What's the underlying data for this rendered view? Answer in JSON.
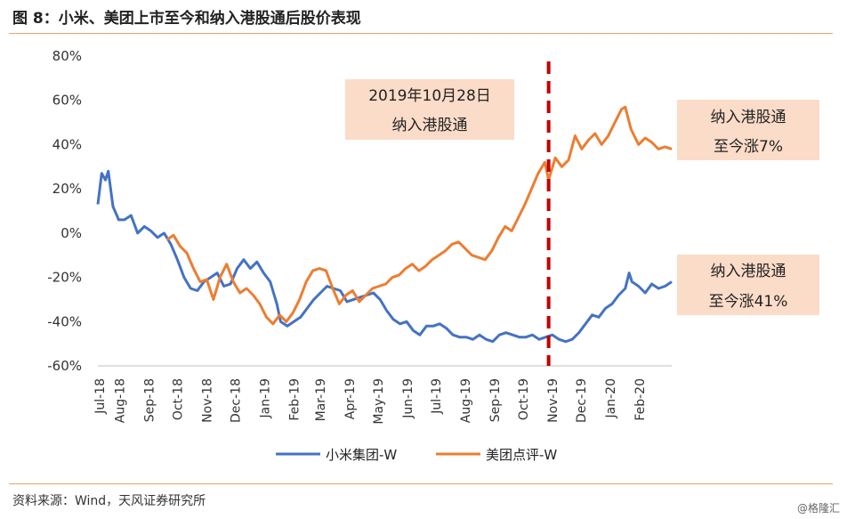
{
  "header": {
    "title": "图 8：小米、美团上市至今和纳入港股通后股价表现"
  },
  "footer": {
    "source": "资料来源：Wind，天风证券研究所",
    "watermark": "@格隆汇"
  },
  "annotations": {
    "inclusion_date": {
      "line1": "2019年10月28日",
      "line2": "纳入港股通"
    },
    "meituan_note": {
      "line1": "纳入港股通",
      "line2": "至今涨7%"
    },
    "xiaomi_note": {
      "line1": "纳入港股通",
      "line2": "至今涨41%"
    }
  },
  "colors": {
    "xiaomi": "#4472c4",
    "meituan": "#ed7d31",
    "marker": "#c00000",
    "note_fill": "#fbdcc8"
  },
  "chart_data": {
    "type": "line",
    "title": "",
    "xlabel": "",
    "ylabel": "",
    "ylim": [
      -60,
      80
    ],
    "y_ticks": [
      "80%",
      "60%",
      "40%",
      "20%",
      "0%",
      "-20%",
      "-40%",
      "-60%"
    ],
    "x_ticks": [
      "Jul-18",
      "Aug-18",
      "Sep-18",
      "Oct-18",
      "Nov-18",
      "Dec-18",
      "Jan-19",
      "Feb-19",
      "Mar-19",
      "Apr-19",
      "May-19",
      "Jun-19",
      "Jul-19",
      "Aug-19",
      "Sep-19",
      "Oct-19",
      "Nov-19",
      "Dec-19",
      "Jan-20",
      "Feb-20"
    ],
    "x_range": [
      "2018-07-09",
      "2020-03-06"
    ],
    "event_date": "2019-10-28",
    "legend": "bottom",
    "grid": false,
    "series": [
      {
        "name": "小米集团-W",
        "color": "#4472c4",
        "points": [
          [
            "2018-07-09",
            13
          ],
          [
            "2018-07-13",
            27
          ],
          [
            "2018-07-17",
            24
          ],
          [
            "2018-07-20",
            28
          ],
          [
            "2018-07-25",
            12
          ],
          [
            "2018-07-31",
            6
          ],
          [
            "2018-08-06",
            6
          ],
          [
            "2018-08-13",
            8
          ],
          [
            "2018-08-20",
            0
          ],
          [
            "2018-08-27",
            3
          ],
          [
            "2018-09-03",
            1
          ],
          [
            "2018-09-10",
            -2
          ],
          [
            "2018-09-17",
            0
          ],
          [
            "2018-09-24",
            -5
          ],
          [
            "2018-10-01",
            -12
          ],
          [
            "2018-10-08",
            -20
          ],
          [
            "2018-10-15",
            -25
          ],
          [
            "2018-10-22",
            -26
          ],
          [
            "2018-10-29",
            -22
          ],
          [
            "2018-11-05",
            -20
          ],
          [
            "2018-11-12",
            -18
          ],
          [
            "2018-11-19",
            -24
          ],
          [
            "2018-11-26",
            -23
          ],
          [
            "2018-12-03",
            -16
          ],
          [
            "2018-12-10",
            -12
          ],
          [
            "2018-12-17",
            -16
          ],
          [
            "2018-12-24",
            -13
          ],
          [
            "2018-12-31",
            -18
          ],
          [
            "2019-01-07",
            -22
          ],
          [
            "2019-01-14",
            -32
          ],
          [
            "2019-01-18",
            -40
          ],
          [
            "2019-01-25",
            -42
          ],
          [
            "2019-02-01",
            -40
          ],
          [
            "2019-02-08",
            -38
          ],
          [
            "2019-02-15",
            -34
          ],
          [
            "2019-02-22",
            -30
          ],
          [
            "2019-03-01",
            -27
          ],
          [
            "2019-03-08",
            -24
          ],
          [
            "2019-03-15",
            -25
          ],
          [
            "2019-03-22",
            -26
          ],
          [
            "2019-03-29",
            -31
          ],
          [
            "2019-04-05",
            -30
          ],
          [
            "2019-04-12",
            -29
          ],
          [
            "2019-04-19",
            -28
          ],
          [
            "2019-04-26",
            -27
          ],
          [
            "2019-05-03",
            -30
          ],
          [
            "2019-05-10",
            -35
          ],
          [
            "2019-05-17",
            -39
          ],
          [
            "2019-05-24",
            -41
          ],
          [
            "2019-05-31",
            -40
          ],
          [
            "2019-06-07",
            -44
          ],
          [
            "2019-06-14",
            -46
          ],
          [
            "2019-06-21",
            -42
          ],
          [
            "2019-06-28",
            -42
          ],
          [
            "2019-07-05",
            -41
          ],
          [
            "2019-07-12",
            -43
          ],
          [
            "2019-07-19",
            -46
          ],
          [
            "2019-07-26",
            -47
          ],
          [
            "2019-08-02",
            -47
          ],
          [
            "2019-08-09",
            -48
          ],
          [
            "2019-08-16",
            -46
          ],
          [
            "2019-08-23",
            -48
          ],
          [
            "2019-08-30",
            -49
          ],
          [
            "2019-09-06",
            -46
          ],
          [
            "2019-09-13",
            -45
          ],
          [
            "2019-09-20",
            -46
          ],
          [
            "2019-09-27",
            -47
          ],
          [
            "2019-10-04",
            -47
          ],
          [
            "2019-10-11",
            -46
          ],
          [
            "2019-10-18",
            -48
          ],
          [
            "2019-10-25",
            -47
          ],
          [
            "2019-11-01",
            -46
          ],
          [
            "2019-11-08",
            -48
          ],
          [
            "2019-11-15",
            -49
          ],
          [
            "2019-11-22",
            -48
          ],
          [
            "2019-11-29",
            -45
          ],
          [
            "2019-12-06",
            -41
          ],
          [
            "2019-12-13",
            -37
          ],
          [
            "2019-12-20",
            -38
          ],
          [
            "2019-12-27",
            -34
          ],
          [
            "2020-01-03",
            -32
          ],
          [
            "2020-01-10",
            -28
          ],
          [
            "2020-01-17",
            -25
          ],
          [
            "2020-01-21",
            -18
          ],
          [
            "2020-01-24",
            -22
          ],
          [
            "2020-01-31",
            -24
          ],
          [
            "2020-02-07",
            -27
          ],
          [
            "2020-02-14",
            -23
          ],
          [
            "2020-02-21",
            -25
          ],
          [
            "2020-02-28",
            -24
          ],
          [
            "2020-03-06",
            -22
          ]
        ]
      },
      {
        "name": "美团点评-W",
        "color": "#ed7d31",
        "points": [
          [
            "2018-09-20",
            -3
          ],
          [
            "2018-09-27",
            -1
          ],
          [
            "2018-10-04",
            -6
          ],
          [
            "2018-10-11",
            -9
          ],
          [
            "2018-10-18",
            -16
          ],
          [
            "2018-10-25",
            -22
          ],
          [
            "2018-11-01",
            -21
          ],
          [
            "2018-11-08",
            -30
          ],
          [
            "2018-11-15",
            -20
          ],
          [
            "2018-11-22",
            -14
          ],
          [
            "2018-11-29",
            -22
          ],
          [
            "2018-12-06",
            -27
          ],
          [
            "2018-12-13",
            -25
          ],
          [
            "2018-12-20",
            -28
          ],
          [
            "2018-12-27",
            -32
          ],
          [
            "2019-01-03",
            -38
          ],
          [
            "2019-01-10",
            -41
          ],
          [
            "2019-01-17",
            -37
          ],
          [
            "2019-01-24",
            -40
          ],
          [
            "2019-01-31",
            -36
          ],
          [
            "2019-02-07",
            -30
          ],
          [
            "2019-02-14",
            -22
          ],
          [
            "2019-02-21",
            -17
          ],
          [
            "2019-02-28",
            -16
          ],
          [
            "2019-03-07",
            -17
          ],
          [
            "2019-03-14",
            -25
          ],
          [
            "2019-03-21",
            -32
          ],
          [
            "2019-03-28",
            -28
          ],
          [
            "2019-04-04",
            -26
          ],
          [
            "2019-04-11",
            -31
          ],
          [
            "2019-04-18",
            -28
          ],
          [
            "2019-04-25",
            -25
          ],
          [
            "2019-05-02",
            -24
          ],
          [
            "2019-05-09",
            -23
          ],
          [
            "2019-05-16",
            -20
          ],
          [
            "2019-05-23",
            -19
          ],
          [
            "2019-05-30",
            -16
          ],
          [
            "2019-06-06",
            -14
          ],
          [
            "2019-06-13",
            -17
          ],
          [
            "2019-06-20",
            -15
          ],
          [
            "2019-06-27",
            -12
          ],
          [
            "2019-07-04",
            -10
          ],
          [
            "2019-07-11",
            -8
          ],
          [
            "2019-07-18",
            -5
          ],
          [
            "2019-07-25",
            -4
          ],
          [
            "2019-08-01",
            -7
          ],
          [
            "2019-08-08",
            -10
          ],
          [
            "2019-08-15",
            -11
          ],
          [
            "2019-08-22",
            -12
          ],
          [
            "2019-08-29",
            -8
          ],
          [
            "2019-09-05",
            -2
          ],
          [
            "2019-09-12",
            3
          ],
          [
            "2019-09-19",
            1
          ],
          [
            "2019-09-26",
            7
          ],
          [
            "2019-10-03",
            13
          ],
          [
            "2019-10-10",
            20
          ],
          [
            "2019-10-17",
            27
          ],
          [
            "2019-10-24",
            32
          ],
          [
            "2019-10-28",
            24
          ],
          [
            "2019-11-04",
            34
          ],
          [
            "2019-11-11",
            30
          ],
          [
            "2019-11-18",
            33
          ],
          [
            "2019-11-25",
            44
          ],
          [
            "2019-12-02",
            38
          ],
          [
            "2019-12-09",
            42
          ],
          [
            "2019-12-16",
            45
          ],
          [
            "2019-12-23",
            40
          ],
          [
            "2019-12-30",
            44
          ],
          [
            "2020-01-06",
            50
          ],
          [
            "2020-01-13",
            56
          ],
          [
            "2020-01-17",
            57
          ],
          [
            "2020-01-23",
            47
          ],
          [
            "2020-01-31",
            40
          ],
          [
            "2020-02-07",
            43
          ],
          [
            "2020-02-14",
            41
          ],
          [
            "2020-02-21",
            38
          ],
          [
            "2020-02-28",
            39
          ],
          [
            "2020-03-06",
            38
          ]
        ]
      }
    ]
  }
}
